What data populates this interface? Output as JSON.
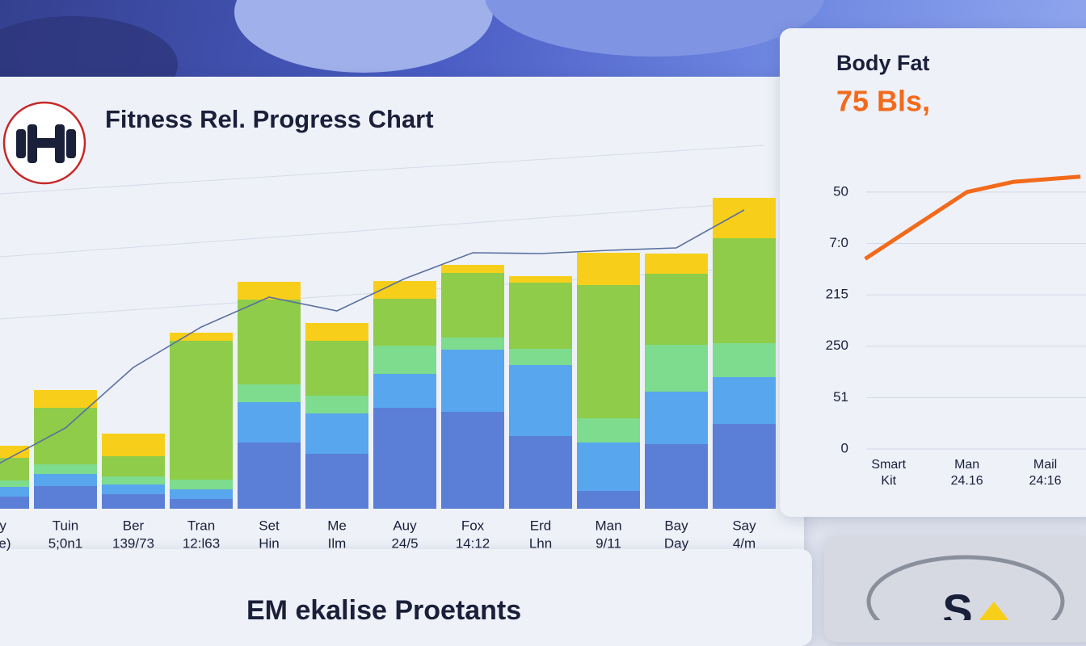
{
  "main_card": {
    "title": "Fitness Rel. Progress Chart",
    "chart": {
      "type": "stacked-bar",
      "categories": [
        "lay",
        "Tuin",
        "Ber",
        "Tran",
        "Set",
        "Me",
        "Auy",
        "Fox",
        "Erd",
        "Man",
        "Bay",
        "Say"
      ],
      "category_sublabels": [
        "Dre)",
        "5;0n1",
        "139/73",
        "12:l63",
        "Hin",
        "Ilm",
        "24/5",
        "14:12",
        "Lhn",
        "9/11",
        "Day",
        "4/m"
      ],
      "series": [
        {
          "color": "#5b7fd6",
          "values": [
            7.5,
            14,
            9,
            6,
            41,
            34,
            62.5,
            60,
            45,
            11,
            40,
            52.5
          ]
        },
        {
          "color": "#58a6ee",
          "values": [
            6,
            7.5,
            6,
            6,
            25,
            25,
            21,
            38.5,
            44,
            30,
            32.5,
            29
          ]
        },
        {
          "color": "#7ddc8e",
          "values": [
            4,
            6,
            5,
            6,
            11,
            11,
            17.5,
            7.5,
            10,
            15,
            29,
            21
          ]
        },
        {
          "color": "#8fcc4a",
          "values": [
            14,
            35,
            12.5,
            86,
            52.5,
            34,
            29,
            40,
            41,
            82.5,
            44,
            65
          ]
        },
        {
          "color": "#f7cf1a",
          "values": [
            7.5,
            11,
            14,
            5,
            11,
            11,
            11,
            5,
            4,
            20,
            12.5,
            25
          ]
        }
      ],
      "line": {
        "color": "#5a6f9e",
        "values": [
          27.5,
          50,
          87.5,
          112.5,
          131,
          122.5,
          142.5,
          158.5,
          158,
          160,
          161.5,
          185
        ]
      },
      "ylim": [
        0,
        225
      ]
    }
  },
  "side_card": {
    "title": "Body Fat",
    "value": "75 Bls,",
    "chart": {
      "type": "line",
      "row_labels": [
        "50",
        "7:0",
        "215",
        "250",
        "51",
        "0"
      ],
      "categories": [
        "Smart",
        "Man",
        "Mail"
      ],
      "category_sublabels": [
        "Kit",
        "24.16",
        "24:16"
      ],
      "x": [
        -0.3,
        1,
        1.6,
        2.45
      ],
      "values": [
        3.7,
        5,
        5.2,
        5.3
      ],
      "color": "#f26a1b",
      "xlim": [
        -0.4,
        2.5
      ],
      "ylim": [
        0,
        5.5
      ]
    }
  },
  "bottom_card": {
    "title": "EM ekalise Proetants"
  },
  "badge": {
    "text": "S"
  }
}
